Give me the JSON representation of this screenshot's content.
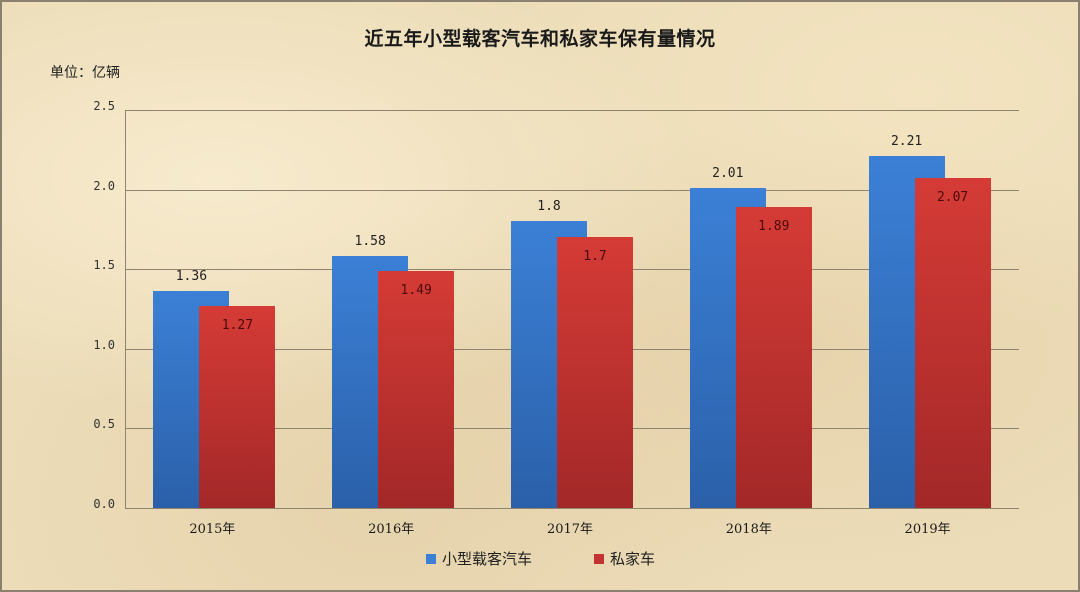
{
  "chart_data": {
    "type": "bar",
    "title": "近五年小型载客汽车和私家车保有量情况",
    "unit_label": "单位：亿辆",
    "xlabel": "",
    "ylabel": "单位：亿辆",
    "categories": [
      "2015年",
      "2016年",
      "2017年",
      "2018年",
      "2019年"
    ],
    "series": [
      {
        "name": "小型载客汽车",
        "color": "#3b80d6",
        "values": [
          1.36,
          1.58,
          1.8,
          2.01,
          2.21
        ]
      },
      {
        "name": "私家车",
        "color": "#d53b36",
        "values": [
          1.27,
          1.49,
          1.7,
          1.89,
          2.07
        ]
      }
    ],
    "value_labels": {
      "series0": [
        "1.36",
        "1.58",
        "1.8",
        "2.01",
        "2.21"
      ],
      "series1": [
        "1.27",
        "1.49",
        "1.7",
        "1.89",
        "2.07"
      ]
    },
    "yticks": [
      "0.0",
      "0.5",
      "1.0",
      "1.5",
      "2.0",
      "2.5"
    ],
    "ylim": [
      0,
      2.5
    ],
    "grid": true,
    "legend_position": "bottom"
  }
}
